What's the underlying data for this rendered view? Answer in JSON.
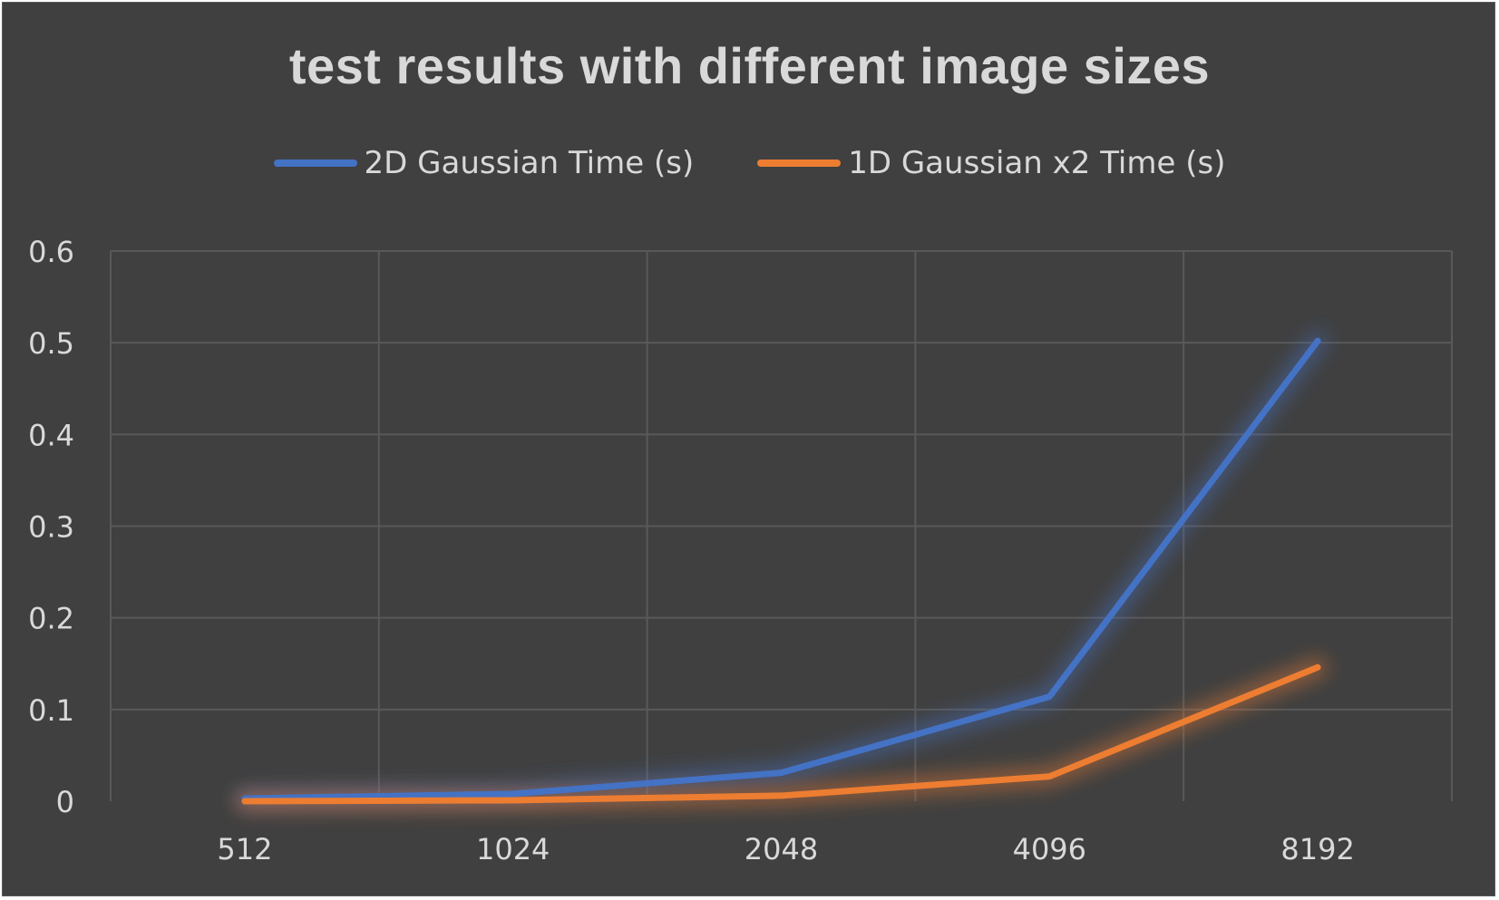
{
  "chart_data": {
    "type": "line",
    "title": "test results with different image sizes",
    "xlabel": "",
    "ylabel": "",
    "categories": [
      "512",
      "1024",
      "2048",
      "4096",
      "8192"
    ],
    "series": [
      {
        "name": "2D Gaussian Time (s)",
        "color": "#4472c4",
        "values": [
          0.003,
          0.008,
          0.031,
          0.114,
          0.502
        ]
      },
      {
        "name": "1D Gaussian x2 Time (s)",
        "color": "#ed7d31",
        "values": [
          0.0,
          0.001,
          0.006,
          0.027,
          0.146
        ]
      }
    ],
    "ylim": [
      0,
      0.6
    ],
    "yticks": [
      "0",
      "0.1",
      "0.2",
      "0.3",
      "0.4",
      "0.5",
      "0.6"
    ],
    "grid": true,
    "legend_position": "top",
    "background": "#404040",
    "text_color": "#d9d9d9",
    "grid_color": "#595959"
  }
}
